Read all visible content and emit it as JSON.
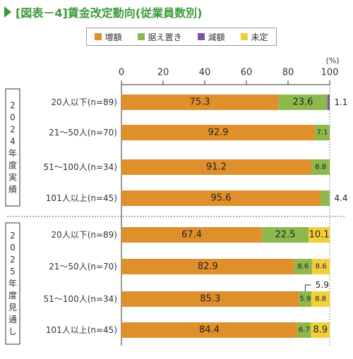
{
  "title": "[図表－4]賃金改定動向(従業員数別)",
  "unit_label": "(%)",
  "colors": {
    "increase": "#e0902a",
    "hold": "#8db94c",
    "decrease": "#7a55a3",
    "undecided": "#f2cf3a",
    "title": "#3d9a3a"
  },
  "chart_data": {
    "type": "bar",
    "orientation": "horizontal",
    "stacked": true,
    "xlim": [
      0,
      100
    ],
    "xticks": [
      "0",
      "20",
      "40",
      "60",
      "80",
      "100"
    ],
    "legend_position": "top",
    "legend": [
      "増額",
      "据え置き",
      "減額",
      "未定"
    ],
    "groups": [
      {
        "label": "2024年度実績",
        "categories": [
          "20人以下(n=89)",
          "21～50人(n=70)",
          "51～100人(n=34)",
          "101人以上(n=45)"
        ],
        "series": [
          {
            "name": "増額",
            "values": [
              75.3,
              92.9,
              91.2,
              95.6
            ]
          },
          {
            "name": "据え置き",
            "values": [
              23.6,
              7.1,
              8.8,
              4.4
            ]
          },
          {
            "name": "減額",
            "values": [
              1.1,
              0,
              0,
              0
            ]
          },
          {
            "name": "未定",
            "values": [
              0,
              0,
              0,
              0
            ]
          }
        ]
      },
      {
        "label": "2025年度見通し",
        "categories": [
          "20人以下(n=89)",
          "21～50人(n=70)",
          "51～100人(n=34)",
          "101人以上(n=45)"
        ],
        "series": [
          {
            "name": "増額",
            "values": [
              67.4,
              82.9,
              85.3,
              84.4
            ]
          },
          {
            "name": "据え置き",
            "values": [
              22.5,
              8.6,
              5.9,
              6.7
            ]
          },
          {
            "name": "減額",
            "values": [
              0,
              0,
              0,
              0
            ]
          },
          {
            "name": "未定",
            "values": [
              10.1,
              8.6,
              8.8,
              8.9
            ]
          }
        ]
      }
    ],
    "data_labels": [
      [
        "75.3",
        "23.6",
        "1.1",
        ""
      ],
      [
        "92.9",
        "7.1",
        "",
        ""
      ],
      [
        "91.2",
        "8.8",
        "",
        ""
      ],
      [
        "95.6",
        "4.4",
        "",
        ""
      ],
      [
        "67.4",
        "22.5",
        "",
        "10.1"
      ],
      [
        "82.9",
        "8.6",
        "",
        "8.6"
      ],
      [
        "85.3",
        "5.9",
        "",
        "8.8"
      ],
      [
        "84.4",
        "6.7",
        "",
        "8.9"
      ]
    ]
  }
}
